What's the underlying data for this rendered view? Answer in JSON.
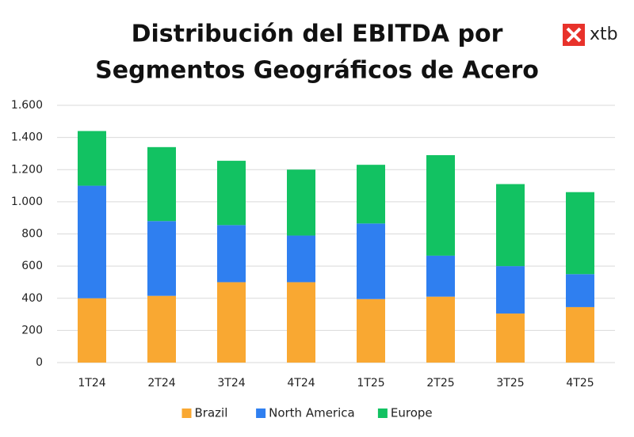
{
  "logo": "xtb",
  "chart_data": {
    "type": "stacked_bar",
    "title": [
      "Distribución del EBITDA por",
      "Segmentos Geográficos de Acero"
    ],
    "categories": [
      "1T24",
      "2T24",
      "3T24",
      "4T24",
      "1T25",
      "2T25",
      "3T25",
      "4T25"
    ],
    "series": [
      {
        "name": "Brazil",
        "color": "#f9a832",
        "values": [
          400,
          415,
          500,
          500,
          395,
          410,
          305,
          345
        ]
      },
      {
        "name": "North America",
        "color": "#2f7ff0",
        "values": [
          700,
          465,
          355,
          290,
          470,
          255,
          295,
          205
        ]
      },
      {
        "name": "Europe",
        "color": "#12c262",
        "values": [
          340,
          460,
          400,
          410,
          365,
          625,
          510,
          510
        ]
      }
    ],
    "ylim": [
      0,
      1600
    ],
    "yticks": [
      0,
      200,
      400,
      600,
      800,
      {
        "value": 1000,
        "label": "1.000"
      },
      {
        "value": 1200,
        "label": "1.200"
      },
      {
        "value": 1400,
        "label": "1.400"
      },
      {
        "value": 1600,
        "label": "1.600"
      }
    ],
    "grid": true,
    "legend": "bottom"
  }
}
